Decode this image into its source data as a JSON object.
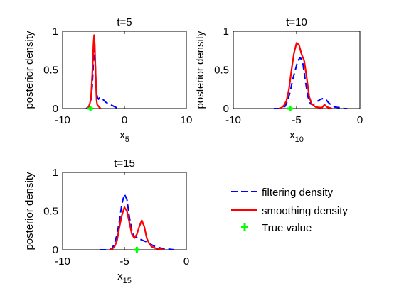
{
  "chart_data": [
    {
      "type": "line",
      "title": "t=5",
      "xlabel": "x",
      "xlabel_subscript": "5",
      "ylabel": "posterior density",
      "xlim": [
        -10,
        10
      ],
      "ylim": [
        0,
        1
      ],
      "xticks": [
        -10,
        0,
        10
      ],
      "yticks": [
        0,
        0.5,
        1
      ],
      "ytick_labels": [
        "0",
        "0.5",
        "1"
      ],
      "series": [
        {
          "name": "filtering density",
          "x": [
            -6.2,
            -5.8,
            -5.6,
            -5.4,
            -5.2,
            -5.0,
            -4.9,
            -4.8,
            -4.7,
            -4.6,
            -4.4,
            -4.2,
            -4.0,
            -3.5,
            -3.0,
            -2.5,
            -2.0,
            -1.5,
            -1.0
          ],
          "y": [
            0.0,
            0.02,
            0.06,
            0.12,
            0.3,
            0.62,
            0.78,
            0.72,
            0.55,
            0.3,
            0.15,
            0.12,
            0.14,
            0.12,
            0.08,
            0.06,
            0.04,
            0.02,
            0.0
          ]
        },
        {
          "name": "smoothing density",
          "x": [
            -6.0,
            -5.8,
            -5.6,
            -5.4,
            -5.2,
            -5.0,
            -4.9,
            -4.8,
            -4.7,
            -4.6,
            -4.5,
            -4.4,
            -4.3,
            -4.2,
            -4.0,
            -3.8
          ],
          "y": [
            0.0,
            0.02,
            0.06,
            0.15,
            0.45,
            0.85,
            0.95,
            0.82,
            0.55,
            0.3,
            0.1,
            0.05,
            0.04,
            0.03,
            0.01,
            0.0
          ]
        }
      ],
      "true_value": -5.5
    },
    {
      "type": "line",
      "title": "t=10",
      "xlabel": "x",
      "xlabel_subscript": "10",
      "ylabel": "posterior density",
      "xlim": [
        -10,
        0
      ],
      "ylim": [
        0,
        1
      ],
      "xticks": [
        -10,
        -5,
        0
      ],
      "yticks": [
        0,
        0.5,
        1
      ],
      "ytick_labels": [
        "0",
        "0.5",
        "1"
      ],
      "series": [
        {
          "name": "filtering density",
          "x": [
            -6.8,
            -6.4,
            -6.1,
            -5.9,
            -5.7,
            -5.5,
            -5.3,
            -5.1,
            -4.9,
            -4.7,
            -4.5,
            -4.3,
            -4.1,
            -3.9,
            -3.7,
            -3.5,
            -3.3,
            -3.1,
            -2.9,
            -2.7,
            -2.5,
            -2.3,
            -2.0,
            -1.5,
            -1.2,
            -1.0
          ],
          "y": [
            0.0,
            0.0,
            0.01,
            0.03,
            0.1,
            0.22,
            0.38,
            0.5,
            0.62,
            0.66,
            0.58,
            0.35,
            0.15,
            0.06,
            0.05,
            0.07,
            0.1,
            0.12,
            0.13,
            0.12,
            0.08,
            0.05,
            0.02,
            0.01,
            0.0,
            0.0
          ]
        },
        {
          "name": "smoothing density",
          "x": [
            -6.4,
            -6.2,
            -6.0,
            -5.8,
            -5.6,
            -5.4,
            -5.2,
            -5.0,
            -4.8,
            -4.6,
            -4.4,
            -4.2,
            -4.0,
            -3.8,
            -3.5,
            -3.0,
            -2.8,
            -2.6,
            -2.4,
            -2.2
          ],
          "y": [
            0.0,
            0.01,
            0.04,
            0.1,
            0.25,
            0.5,
            0.72,
            0.85,
            0.82,
            0.7,
            0.62,
            0.4,
            0.15,
            0.06,
            0.02,
            0.01,
            0.05,
            0.02,
            0.01,
            0.0
          ]
        }
      ],
      "true_value": -5.5
    },
    {
      "type": "line",
      "title": "t=15",
      "xlabel": "x",
      "xlabel_subscript": "15",
      "ylabel": "posterior density",
      "xlim": [
        -10,
        0
      ],
      "ylim": [
        0,
        1
      ],
      "xticks": [
        -10,
        -5,
        0
      ],
      "yticks": [
        0,
        0.5,
        1
      ],
      "ytick_labels": [
        "0",
        "0.5",
        "1"
      ],
      "series": [
        {
          "name": "filtering density",
          "x": [
            -7.0,
            -6.6,
            -6.2,
            -6.0,
            -5.8,
            -5.6,
            -5.4,
            -5.2,
            -5.0,
            -4.8,
            -4.6,
            -4.4,
            -4.2,
            -4.0,
            -3.8,
            -3.5,
            -3.2,
            -3.0,
            -2.5,
            -2.0,
            -1.5,
            -1.0
          ],
          "y": [
            0.0,
            0.0,
            0.0,
            0.02,
            0.08,
            0.2,
            0.38,
            0.6,
            0.72,
            0.65,
            0.42,
            0.25,
            0.17,
            0.16,
            0.14,
            0.12,
            0.1,
            0.08,
            0.04,
            0.02,
            0.01,
            0.0
          ]
        },
        {
          "name": "smoothing density",
          "x": [
            -6.2,
            -6.0,
            -5.8,
            -5.6,
            -5.4,
            -5.2,
            -5.0,
            -4.8,
            -4.6,
            -4.4,
            -4.2,
            -4.0,
            -3.8,
            -3.6,
            -3.4,
            -3.2,
            -3.0,
            -2.8,
            -2.5,
            -2.2,
            -2.0,
            -1.8
          ],
          "y": [
            0.0,
            0.01,
            0.04,
            0.12,
            0.3,
            0.45,
            0.55,
            0.5,
            0.35,
            0.2,
            0.15,
            0.2,
            0.3,
            0.38,
            0.3,
            0.15,
            0.08,
            0.04,
            0.02,
            0.01,
            0.005,
            0.0
          ]
        }
      ],
      "true_value": -4
    }
  ],
  "legend": {
    "items": [
      {
        "label": "filtering density",
        "style": "dashed",
        "color": "#0000ff"
      },
      {
        "label": "smoothing density",
        "style": "solid",
        "color": "#ff0000"
      },
      {
        "label": "True value",
        "style": "marker",
        "color": "#00ff00"
      }
    ]
  },
  "colors": {
    "filtering": "#0000ff",
    "smoothing": "#ff0000",
    "true_value": "#00ff00"
  }
}
